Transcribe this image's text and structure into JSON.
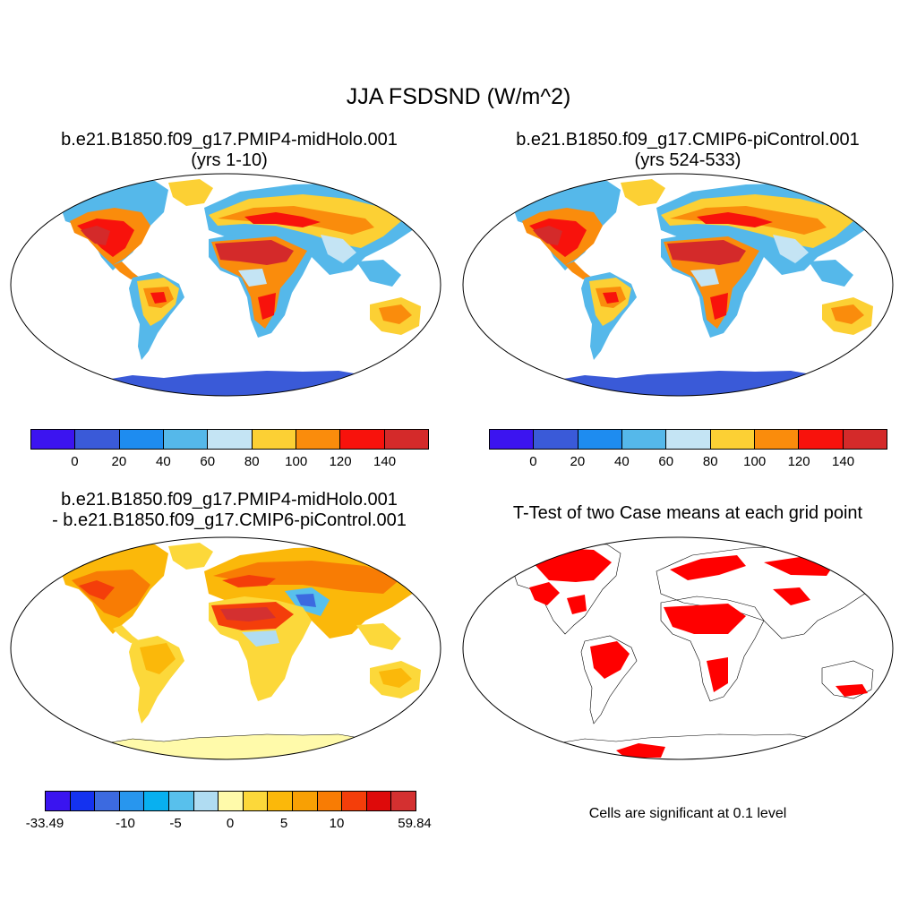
{
  "figure": {
    "title": "JJA FSDSND (W/m^2)"
  },
  "panels": [
    {
      "id": "top-left",
      "title_line1": "b.e21.B1850.f09_g17.PMIP4-midHolo.001",
      "title_line2": "(yrs 1-10)"
    },
    {
      "id": "top-right",
      "title_line1": "b.e21.B1850.f09_g17.CMIP6-piControl.001",
      "title_line2": "(yrs 524-533)"
    },
    {
      "id": "bottom-left",
      "title_line1": "b.e21.B1850.f09_g17.PMIP4-midHolo.001",
      "title_line2": "- b.e21.B1850.f09_g17.CMIP6-piControl.001"
    },
    {
      "id": "bottom-right",
      "title_line1": "T-Test of two Case means at each grid point",
      "note": "Cells are significant at 0.1 level"
    }
  ],
  "colorbars": {
    "absolute": {
      "colors": [
        "#3c14f0",
        "#3a5ad8",
        "#1e8cf0",
        "#55b8ea",
        "#c4e4f4",
        "#fcd034",
        "#fa8c0c",
        "#f8120c",
        "#d42a2a"
      ],
      "labels": [
        "0",
        "20",
        "40",
        "60",
        "80",
        "100",
        "120",
        "140"
      ]
    },
    "difference": {
      "colors": [
        "#3a14f0",
        "#1432f0",
        "#3c6ae0",
        "#2896ee",
        "#08b0f0",
        "#58c0ec",
        "#b0dcf2",
        "#fffaaa",
        "#fcd83a",
        "#fbb80a",
        "#f8a004",
        "#f87c04",
        "#f43e0a",
        "#de0a0a",
        "#d43030"
      ],
      "labels": [
        "-33.49",
        "-10",
        "-5",
        "0",
        "5",
        "10",
        "59.84"
      ]
    }
  },
  "chart_data": [
    {
      "type": "heatmap",
      "title": "b.e21.B1850.f09_g17.PMIP4-midHolo.001 (yrs 1-10)",
      "variable": "JJA FSDSND (W/m^2)",
      "colorbar_levels": [
        0,
        20,
        40,
        60,
        80,
        100,
        120,
        140
      ]
    },
    {
      "type": "heatmap",
      "title": "b.e21.B1850.f09_g17.CMIP6-piControl.001 (yrs 524-533)",
      "variable": "JJA FSDSND (W/m^2)",
      "colorbar_levels": [
        0,
        20,
        40,
        60,
        80,
        100,
        120,
        140
      ]
    },
    {
      "type": "heatmap",
      "title": "b.e21.B1850.f09_g17.PMIP4-midHolo.001 - b.e21.B1850.f09_g17.CMIP6-piControl.001",
      "colorbar_levels": [
        -10,
        -5,
        0,
        5,
        10
      ],
      "min": -33.49,
      "max": 59.84
    },
    {
      "type": "heatmap",
      "title": "T-Test of two Case means at each grid point",
      "significance_level": 0.1
    }
  ]
}
